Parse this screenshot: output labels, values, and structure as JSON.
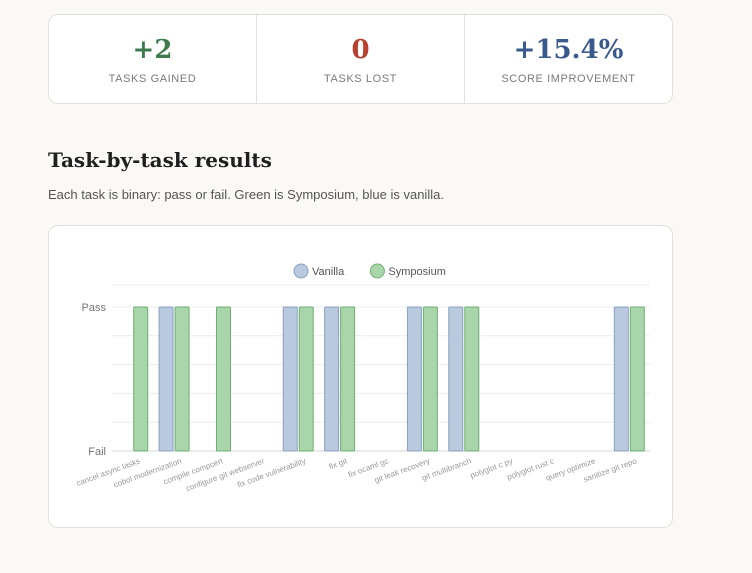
{
  "stats": [
    {
      "value": "+2",
      "label": "TASKS GAINED",
      "color": "#3f7a4e"
    },
    {
      "value": "0",
      "label": "TASKS LOST",
      "color": "#b5412e"
    },
    {
      "value": "+15.4%",
      "label": "SCORE IMPROVEMENT",
      "color": "#3a5a8c"
    }
  ],
  "section": {
    "title": "Task-by-task results",
    "description": "Each task is binary: pass or fail. Green is Symposium, blue is vanilla."
  },
  "chart_data": {
    "type": "bar",
    "title": "",
    "xlabel": "",
    "ylabel": "",
    "ylim": [
      0,
      1
    ],
    "y_ticks": [
      {
        "value": 0,
        "label": "Fail"
      },
      {
        "value": 1,
        "label": "Pass"
      }
    ],
    "grid": true,
    "legend_position": "top-center",
    "categories": [
      "cancel async tasks",
      "cobol modernization",
      "compile compcert",
      "configure git webserver",
      "fix code vulnerability",
      "fix git",
      "fix ocaml gc",
      "git leak recovery",
      "git multibranch",
      "polyglot c py",
      "polyglot rust c",
      "query optimize",
      "sanitize git repo"
    ],
    "series": [
      {
        "name": "Vanilla",
        "fill": "#b9c9de",
        "stroke": "#8aa0c0",
        "values": [
          0,
          1,
          0,
          0,
          1,
          1,
          0,
          1,
          1,
          0,
          0,
          0,
          1
        ]
      },
      {
        "name": "Symposium",
        "fill": "#a8d5a9",
        "stroke": "#6fae72",
        "values": [
          1,
          1,
          1,
          0,
          1,
          1,
          0,
          1,
          1,
          0,
          0,
          0,
          1
        ]
      }
    ]
  }
}
